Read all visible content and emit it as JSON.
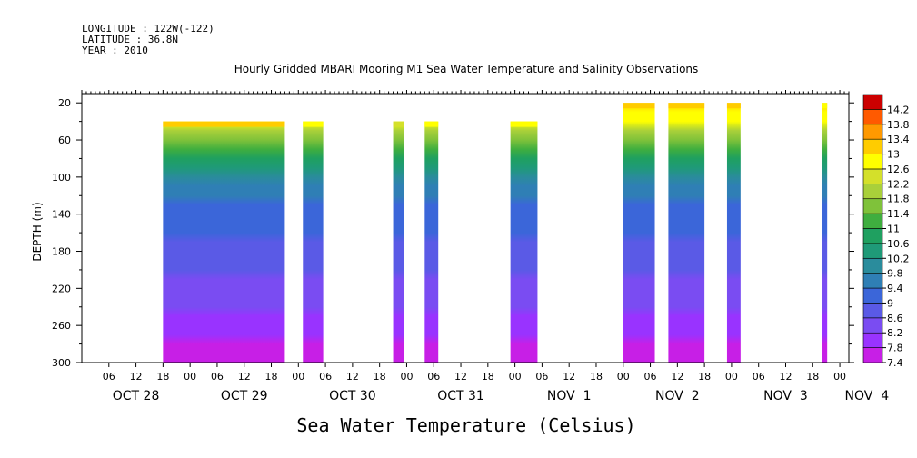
{
  "header": {
    "longitude": "LONGITUDE : 122W(-122)",
    "latitude": "LATITUDE : 36.8N",
    "year": "YEAR : 2010"
  },
  "chart_data": {
    "type": "heatmap",
    "title": "Hourly Gridded MBARI Mooring M1 Sea Water Temperature and Salinity Observations",
    "xlabel": "Sea Water Temperature (Celsius)",
    "ylabel": "DEPTH (m)",
    "x_hour_ticks": [
      "06",
      "12",
      "18",
      "00",
      "06",
      "12",
      "18",
      "00",
      "06",
      "12",
      "18",
      "00",
      "06",
      "12",
      "18",
      "00",
      "06",
      "12",
      "18",
      "00",
      "06",
      "12",
      "18",
      "00",
      "06",
      "12",
      "18",
      "00"
    ],
    "x_day_labels": [
      "OCT 28",
      "OCT 29",
      "OCT 30",
      "OCT 31",
      "NOV  1",
      "NOV  2",
      "NOV  3",
      "NOV  4"
    ],
    "xlim_hours": [
      0,
      170
    ],
    "ylim_depth": [
      10,
      300
    ],
    "y_ticks": [
      20,
      60,
      100,
      140,
      180,
      220,
      260,
      300
    ],
    "y_inverted": true,
    "colorbar_levels": [
      "7.4",
      "7.8",
      "8.2",
      "8.6",
      "9",
      "9.4",
      "9.8",
      "10.2",
      "10.6",
      "11",
      "11.4",
      "11.8",
      "12.2",
      "12.6",
      "13",
      "13.4",
      "13.8",
      "14.2"
    ],
    "colorbar_colors": [
      "#c71fe6",
      "#9933ff",
      "#7a4cf2",
      "#5a5ae6",
      "#3b66d9",
      "#2f7fb5",
      "#2a8c9c",
      "#1f9a78",
      "#1fa060",
      "#3fae3f",
      "#7fc23a",
      "#a9d03a",
      "#d4e02a",
      "#ffff00",
      "#ffcc00",
      "#ff9900",
      "#ff5a00",
      "#cc0000"
    ],
    "data_segments": [
      {
        "start_hour": 18,
        "end_hour": 45,
        "top_depth": 40,
        "surface_temp": 13.0
      },
      {
        "start_hour": 49,
        "end_hour": 53.5,
        "top_depth": 40,
        "surface_temp": 12.6
      },
      {
        "start_hour": 69,
        "end_hour": 71.5,
        "top_depth": 40,
        "surface_temp": 12.4
      },
      {
        "start_hour": 76,
        "end_hour": 79,
        "top_depth": 40,
        "surface_temp": 12.6
      },
      {
        "start_hour": 95,
        "end_hour": 101,
        "top_depth": 40,
        "surface_temp": 12.8
      },
      {
        "start_hour": 120,
        "end_hour": 127,
        "top_depth": 20,
        "surface_temp": 13.0
      },
      {
        "start_hour": 130,
        "end_hour": 138,
        "top_depth": 20,
        "surface_temp": 13.0
      },
      {
        "start_hour": 143,
        "end_hour": 146,
        "top_depth": 20,
        "surface_temp": 13.0
      },
      {
        "start_hour": 164,
        "end_hour": 165.2,
        "top_depth": 20,
        "surface_temp": 12.6
      }
    ],
    "temperature_profile": [
      {
        "depth": 20,
        "temp": 13.0
      },
      {
        "depth": 40,
        "temp": 12.6
      },
      {
        "depth": 60,
        "temp": 11.6
      },
      {
        "depth": 80,
        "temp": 10.6
      },
      {
        "depth": 100,
        "temp": 9.9
      },
      {
        "depth": 120,
        "temp": 9.6
      },
      {
        "depth": 140,
        "temp": 9.2
      },
      {
        "depth": 180,
        "temp": 8.9
      },
      {
        "depth": 220,
        "temp": 8.4
      },
      {
        "depth": 260,
        "temp": 8.0
      },
      {
        "depth": 300,
        "temp": 7.5
      }
    ]
  }
}
